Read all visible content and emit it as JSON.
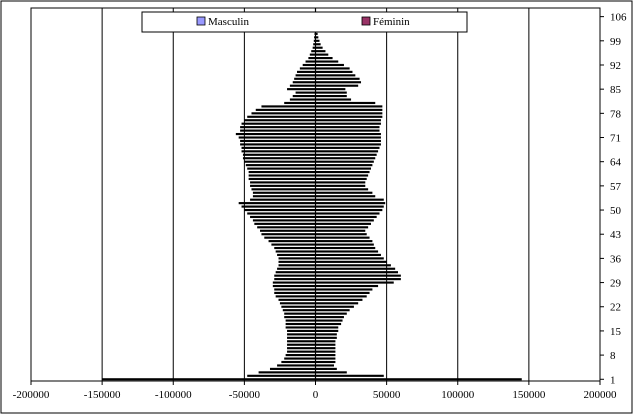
{
  "chart_data": {
    "type": "bar",
    "orientation": "horizontal",
    "title": "",
    "xlabel": "",
    "ylabel": "",
    "xlim": [
      -200000,
      200000
    ],
    "x_ticks": [
      -200000,
      -150000,
      -100000,
      -50000,
      0,
      50000,
      100000,
      150000,
      200000
    ],
    "x_tick_labels": [
      "-200000",
      "-150000",
      "-100000",
      "-50000",
      "0",
      "50000",
      "100000",
      "150000",
      "200000"
    ],
    "y_ticks": [
      1,
      8,
      15,
      22,
      29,
      36,
      43,
      50,
      57,
      64,
      71,
      78,
      85,
      92,
      99,
      106
    ],
    "y_tick_labels": [
      "1",
      "8",
      "15",
      "22",
      "29",
      "36",
      "43",
      "50",
      "57",
      "64",
      "71",
      "78",
      "85",
      "92",
      "99",
      "106"
    ],
    "ylim": [
      1,
      108
    ],
    "grid": "vertical",
    "legend_position": "top-center",
    "ages": [
      1,
      2,
      3,
      4,
      5,
      6,
      7,
      8,
      9,
      10,
      11,
      12,
      13,
      14,
      15,
      16,
      17,
      18,
      19,
      20,
      21,
      22,
      23,
      24,
      25,
      26,
      27,
      28,
      29,
      30,
      31,
      32,
      33,
      34,
      35,
      36,
      37,
      38,
      39,
      40,
      41,
      42,
      43,
      44,
      45,
      46,
      47,
      48,
      49,
      50,
      51,
      52,
      53,
      54,
      55,
      56,
      57,
      58,
      59,
      60,
      61,
      62,
      63,
      64,
      65,
      66,
      67,
      68,
      69,
      70,
      71,
      72,
      73,
      74,
      75,
      76,
      77,
      78,
      79,
      80,
      81,
      82,
      83,
      84,
      85,
      86,
      87,
      88,
      89,
      90,
      91,
      92,
      93,
      94,
      95,
      96,
      97,
      98,
      99,
      100,
      101,
      102,
      103,
      104,
      105,
      106,
      107,
      108
    ],
    "series": [
      {
        "name": "Masculin",
        "color": "#9999ff",
        "values": [
          -150000,
          -48000,
          -40000,
          -32000,
          -27000,
          -24000,
          -22000,
          -21000,
          -20000,
          -20000,
          -20000,
          -20000,
          -20000,
          -20000,
          -20000,
          -21000,
          -21000,
          -21000,
          -22000,
          -22000,
          -23000,
          -24000,
          -25000,
          -26000,
          -28000,
          -29000,
          -29000,
          -30000,
          -30000,
          -29000,
          -29000,
          -28000,
          -27000,
          -26000,
          -26000,
          -26000,
          -27000,
          -28000,
          -29000,
          -31000,
          -33000,
          -36000,
          -38000,
          -39000,
          -41000,
          -43000,
          -44000,
          -46000,
          -48000,
          -50000,
          -52000,
          -54000,
          -46000,
          -44000,
          -44000,
          -45000,
          -46000,
          -46000,
          -47000,
          -47000,
          -47000,
          -48000,
          -49000,
          -50000,
          -51000,
          -51000,
          -52000,
          -52000,
          -53000,
          -53000,
          -54000,
          -56000,
          -53000,
          -53000,
          -52000,
          -50000,
          -48000,
          -45000,
          -42000,
          -38000,
          -22000,
          -18000,
          -16000,
          -14000,
          -20000,
          -18000,
          -16000,
          -15000,
          -14000,
          -13000,
          -11000,
          -9000,
          -7000,
          -5000,
          -4000,
          -3000,
          -2000,
          -1600,
          -1200,
          -1000,
          -700,
          -500,
          -400,
          -300,
          -200,
          -120,
          -60,
          -30
        ]
      },
      {
        "name": "Féminin",
        "color": "#993366",
        "values": [
          145000,
          48000,
          22000,
          15000,
          13000,
          14000,
          14000,
          14000,
          14000,
          14000,
          14000,
          14000,
          15000,
          15000,
          16000,
          16000,
          18000,
          19000,
          20000,
          22000,
          24000,
          27000,
          30000,
          33000,
          36000,
          38000,
          40000,
          44000,
          55000,
          60000,
          60000,
          58000,
          56000,
          53000,
          50000,
          48000,
          46000,
          44000,
          42000,
          41000,
          40000,
          38000,
          36000,
          35000,
          37000,
          39000,
          41000,
          43000,
          45000,
          47000,
          48000,
          49000,
          48000,
          42000,
          40000,
          37000,
          35000,
          35000,
          36000,
          37000,
          38000,
          39000,
          40000,
          41000,
          42000,
          43000,
          44000,
          45000,
          46000,
          46000,
          46000,
          46000,
          45000,
          45000,
          46000,
          46000,
          47000,
          47000,
          47000,
          47000,
          42000,
          25000,
          22000,
          22000,
          21000,
          30000,
          32000,
          31000,
          28000,
          26000,
          24000,
          20000,
          16000,
          12000,
          9000,
          7000,
          5000,
          3600,
          2800,
          2000,
          1500,
          1000,
          700,
          500,
          300,
          200,
          120,
          60
        ]
      }
    ]
  },
  "legend": {
    "items": [
      {
        "label": "Masculin",
        "color": "#9999ff"
      },
      {
        "label": "Féminin",
        "color": "#993366"
      }
    ]
  }
}
